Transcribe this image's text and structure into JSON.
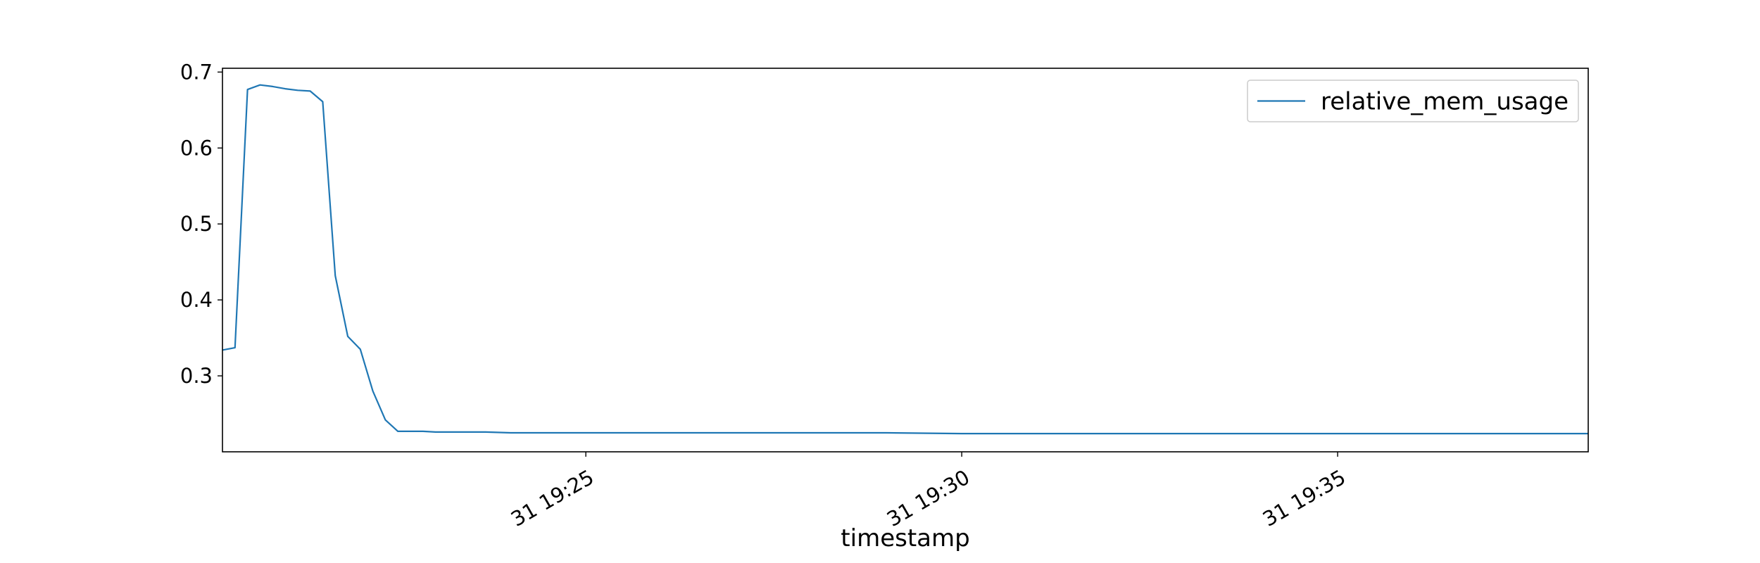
{
  "chart_data": {
    "type": "line",
    "title": "",
    "xlabel": "timestamp",
    "ylabel": "",
    "x_unit": "minutes",
    "xlim": [
      "19:20:10",
      "19:38:20"
    ],
    "ylim": [
      0.2,
      0.705
    ],
    "yticks": [
      0.3,
      0.4,
      0.5,
      0.6,
      0.7
    ],
    "ytick_labels": [
      "0.3",
      "0.4",
      "0.5",
      "0.6",
      "0.7"
    ],
    "xticks": [
      "19:25",
      "19:30",
      "19:35"
    ],
    "xtick_labels": [
      "31 19:25",
      "31 19:30",
      "31 19:35"
    ],
    "grid": false,
    "legend_position": "upper right",
    "series": [
      {
        "name": "relative_mem_usage",
        "color": "#1f77b4",
        "x": [
          "19:20:10",
          "19:20:20",
          "19:20:30",
          "19:20:40",
          "19:20:50",
          "19:21:00",
          "19:21:10",
          "19:21:20",
          "19:21:30",
          "19:21:40",
          "19:21:50",
          "19:22:00",
          "19:22:10",
          "19:22:20",
          "19:22:30",
          "19:22:40",
          "19:22:50",
          "19:23:00",
          "19:23:20",
          "19:23:40",
          "19:24:00",
          "19:24:10",
          "19:25:00",
          "19:26:00",
          "19:27:00",
          "19:28:00",
          "19:29:00",
          "19:30:00",
          "19:31:00",
          "19:32:00",
          "19:33:00",
          "19:34:00",
          "19:35:00",
          "19:36:00",
          "19:37:00",
          "19:38:20"
        ],
        "y": [
          0.334,
          0.337,
          0.677,
          0.683,
          0.681,
          0.678,
          0.676,
          0.675,
          0.661,
          0.432,
          0.352,
          0.335,
          0.28,
          0.242,
          0.227,
          0.227,
          0.227,
          0.226,
          0.226,
          0.226,
          0.225,
          0.225,
          0.225,
          0.225,
          0.225,
          0.225,
          0.225,
          0.224,
          0.224,
          0.224,
          0.224,
          0.224,
          0.224,
          0.224,
          0.224,
          0.224
        ]
      }
    ]
  }
}
